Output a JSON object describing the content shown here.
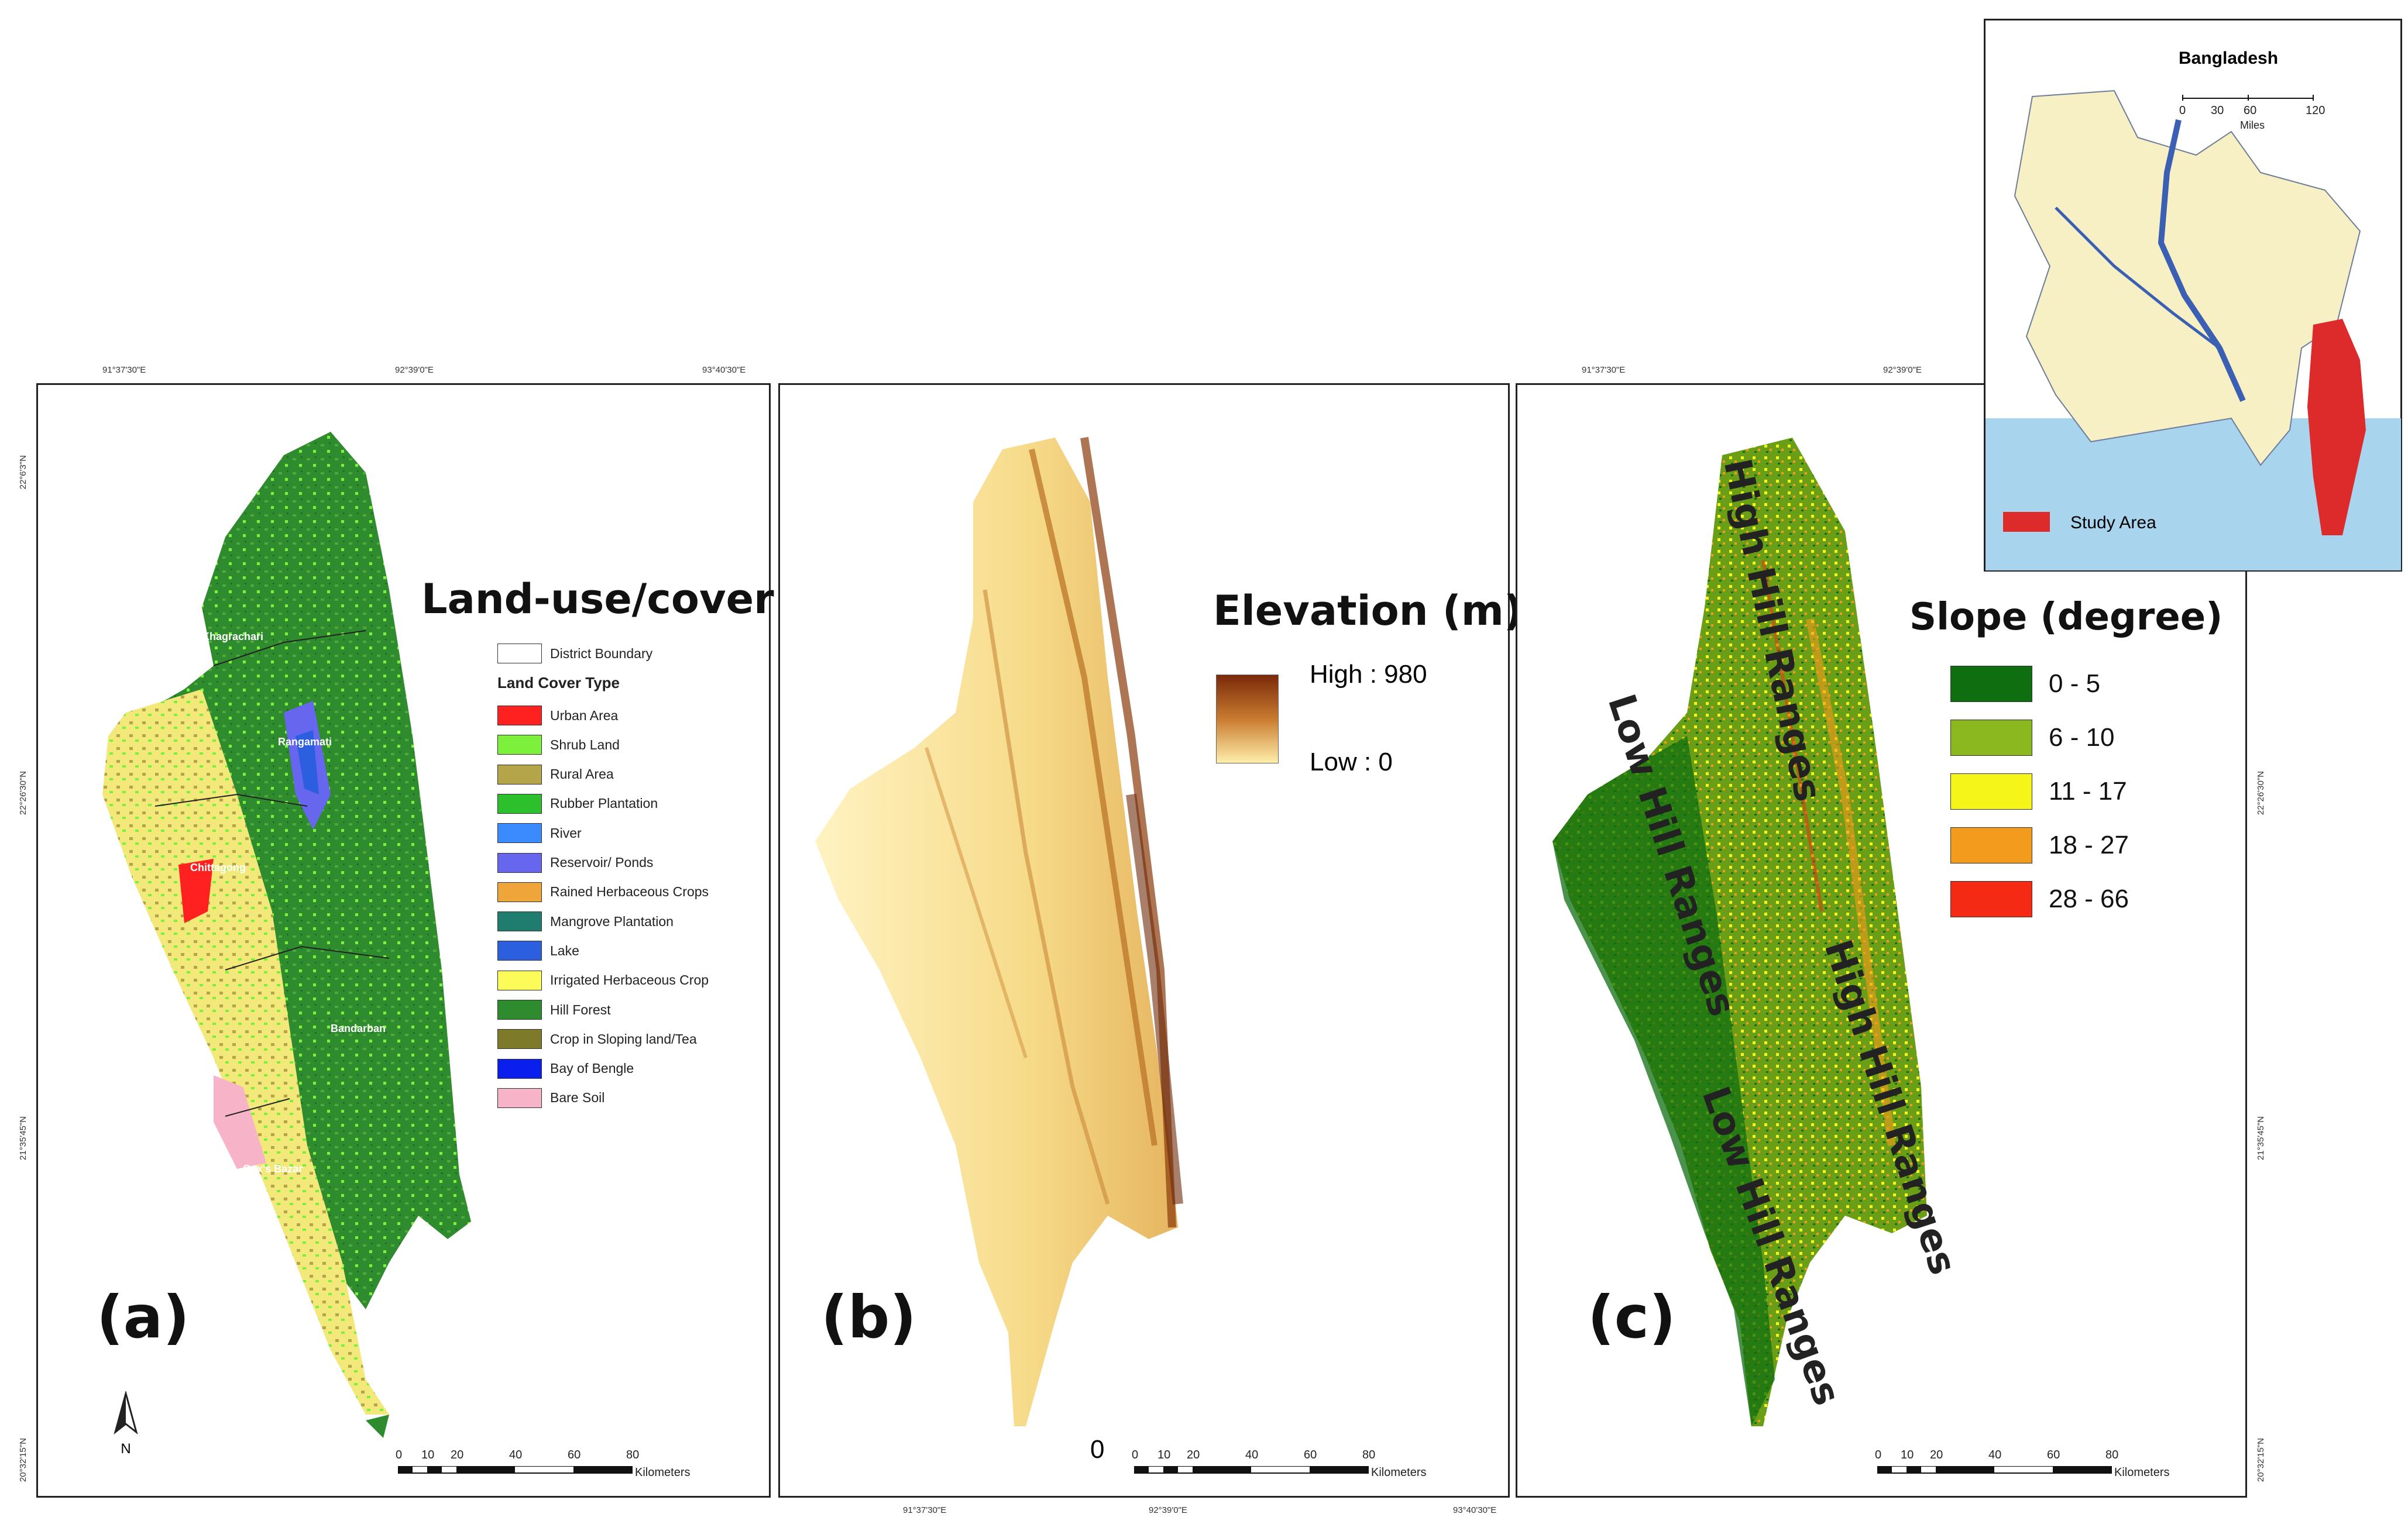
{
  "colors": {
    "urban": "#ff2020",
    "shrub": "#7cf03a",
    "rural": "#b5a54a",
    "rubber": "#2cc02c",
    "river": "#3b8bff",
    "reservoir": "#6666ee",
    "rained": "#f0a53a",
    "mangrove": "#1e7d6e",
    "lake": "#2b5fe0",
    "irrigated": "#fbfb5a",
    "hillforest": "#2e8b2e",
    "sloping": "#7d7a2a",
    "bay": "#0a1eee",
    "baresoil": "#f7b4c8",
    "slope_0_5": "#0f6f10",
    "slope_6_10": "#8ab81e",
    "slope_11_17": "#f6f51a",
    "slope_18_27": "#f39b1c",
    "slope_28_66": "#f42a14",
    "elev_high": "#7a2a0a",
    "elev_low": "#ffeeaa",
    "inset_land": "#f7f0c4",
    "inset_water": "#a8d4ee",
    "inset_study": "#dd2b2b"
  },
  "panel_a": {
    "letter": "(a)",
    "title": "Land-use/cover",
    "top_ticks": [
      "91°37'30\"E",
      "92°39'0\"E",
      "93°40'30\"E"
    ],
    "left_ticks": [
      "22°6'3\"N",
      "22°26'30\"N",
      "21°35'45\"N",
      "20°32'15\"N"
    ],
    "district_boundary_label": "District Boundary",
    "legend_heading": "Land Cover Type",
    "legend": [
      {
        "label": "Urban Area",
        "color": "#ff2020"
      },
      {
        "label": "Shrub Land",
        "color": "#7cf03a"
      },
      {
        "label": "Rural Area",
        "color": "#b5a54a"
      },
      {
        "label": "Rubber Plantation",
        "color": "#2cc02c"
      },
      {
        "label": "River",
        "color": "#3b8bff"
      },
      {
        "label": "Reservoir/ Ponds",
        "color": "#6666ee"
      },
      {
        "label": "Rained Herbaceous Crops",
        "color": "#f0a53a"
      },
      {
        "label": "Mangrove Plantation",
        "color": "#1e7d6e"
      },
      {
        "label": "Lake",
        "color": "#2b5fe0"
      },
      {
        "label": "Irrigated Herbaceous Crop",
        "color": "#fbfb5a"
      },
      {
        "label": "Hill Forest",
        "color": "#2e8b2e"
      },
      {
        "label": "Crop in Sloping land/Tea",
        "color": "#7d7a2a"
      },
      {
        "label": "Bay of Bengle",
        "color": "#0a1eee"
      },
      {
        "label": "Bare Soil",
        "color": "#f7b4c8"
      }
    ],
    "districts": [
      "Khagrachari",
      "Rangamati",
      "Chittagong",
      "Bandarban",
      "Cox's Bazar"
    ],
    "north": "N",
    "scale_numbers": [
      "0",
      "10",
      "20",
      "40",
      "60",
      "80"
    ],
    "scale_unit": "Kilometers"
  },
  "panel_b": {
    "letter": "(b)",
    "title": "Elevation (m)",
    "legend_high": "High : 980",
    "legend_low": "Low : 0",
    "bottom_ticks": [
      "91°37'30\"E",
      "92°39'0\"E",
      "93°40'30\"E"
    ],
    "inner_ticks": [
      "91°37'30\"E",
      "92°39'0\"E"
    ],
    "zero_label": "0",
    "scale_numbers": [
      "0",
      "10",
      "20",
      "40",
      "60",
      "80"
    ],
    "scale_unit": "Kilometers"
  },
  "panel_c": {
    "letter": "(c)",
    "title": "Slope (degree)",
    "top_ticks": [
      "91°37'30\"E",
      "92°39'0\"E"
    ],
    "right_ticks": [
      "22°26'30\"N",
      "21°35'45\"N",
      "20°32'15\"N"
    ],
    "legend": [
      {
        "label": "0 - 5",
        "color": "#0f6f10"
      },
      {
        "label": "6 - 10",
        "color": "#8ab81e"
      },
      {
        "label": "11 - 17",
        "color": "#f6f51a"
      },
      {
        "label": "18 - 27",
        "color": "#f39b1c"
      },
      {
        "label": "28 - 66",
        "color": "#f42a14"
      }
    ],
    "range_labels": [
      "High Hill Ranges",
      "Low Hill Ranges",
      "High Hill Ranges",
      "Low Hill Ranges"
    ],
    "scale_numbers": [
      "0",
      "10",
      "20",
      "40",
      "60",
      "80"
    ],
    "scale_unit": "Kilometers"
  },
  "inset": {
    "title": "Bangladesh",
    "scale_numbers": [
      "0",
      "30",
      "60",
      "120"
    ],
    "scale_unit": "Miles",
    "legend_label": "Study Area"
  }
}
